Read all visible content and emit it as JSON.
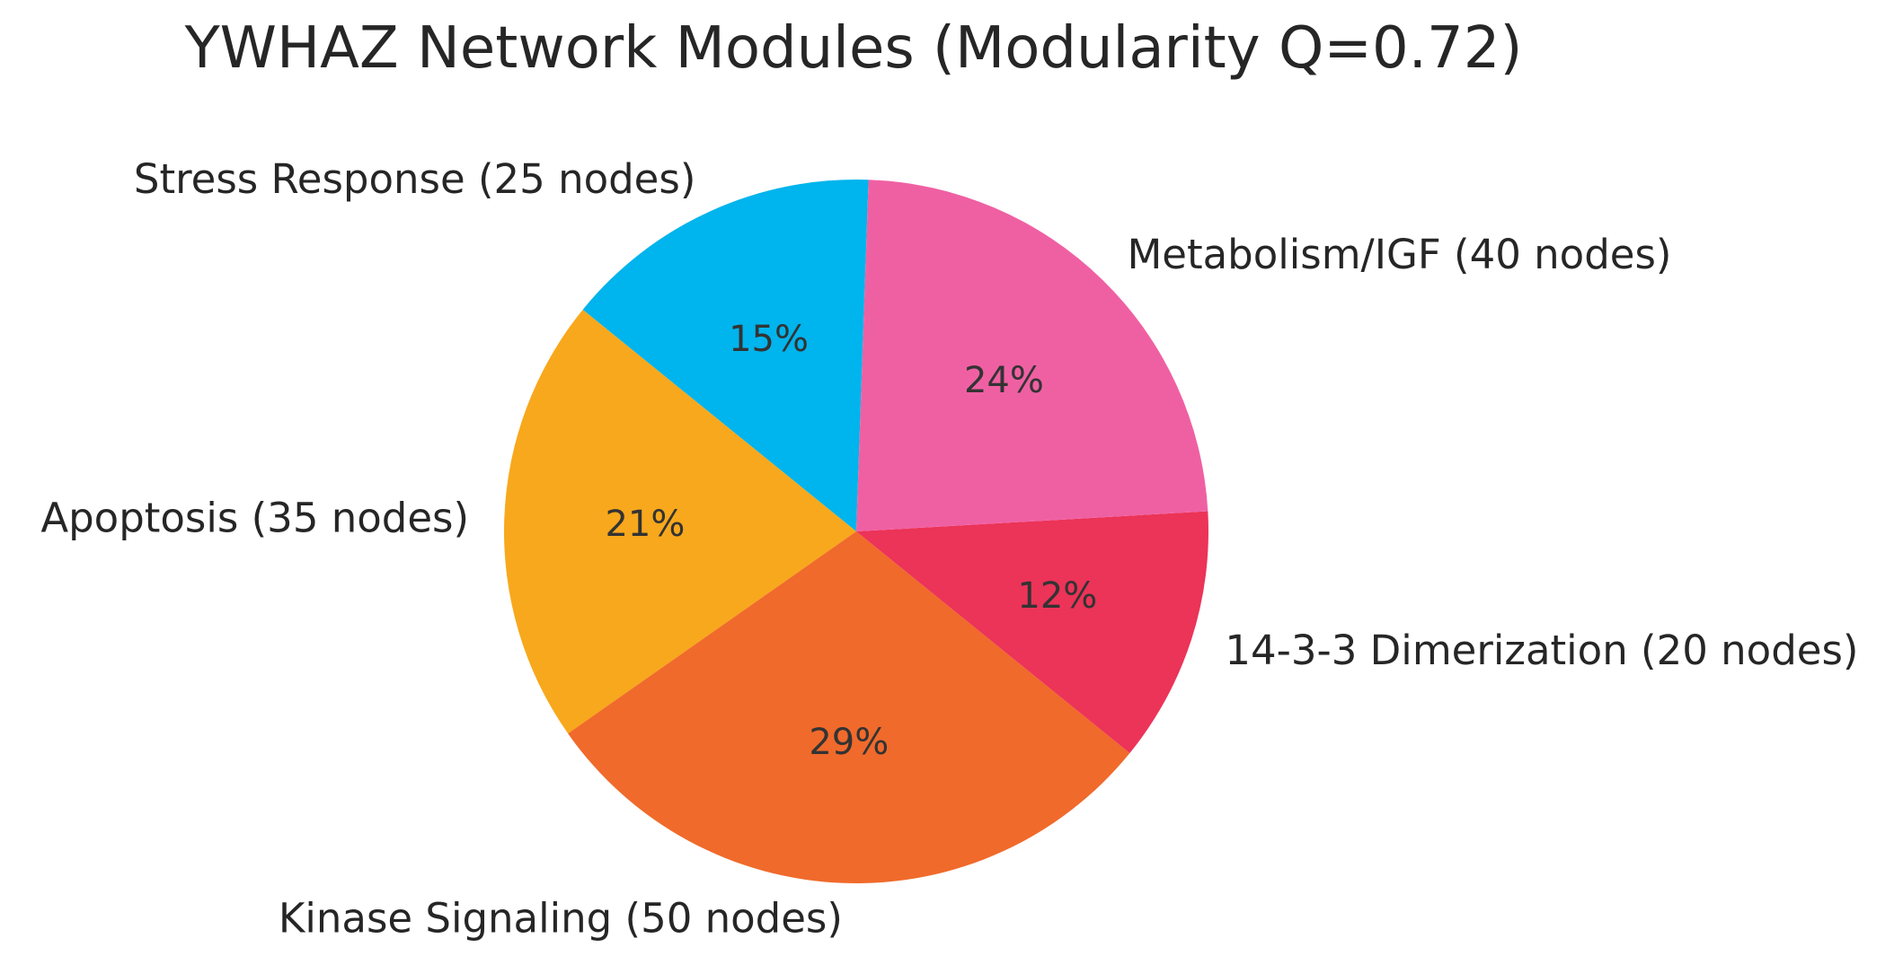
{
  "chart_data": {
    "type": "pie",
    "title": "YWHAZ Network Modules (Modularity Q=0.72)",
    "start_angle_deg": 88,
    "direction": "counterclockwise",
    "slices": [
      {
        "label": "Stress Response (25 nodes)",
        "value": 25,
        "pct_label": "15%",
        "color": "#00b4ed"
      },
      {
        "label": "Apoptosis (35 nodes)",
        "value": 35,
        "pct_label": "21%",
        "color": "#f8a81c"
      },
      {
        "label": "Kinase Signaling (50 nodes)",
        "value": 50,
        "pct_label": "29%",
        "color": "#f06a2b"
      },
      {
        "label": "14-3-3 Dimerization (20 nodes)",
        "value": 20,
        "pct_label": "12%",
        "color": "#ec3358"
      },
      {
        "label": "Metabolism/IGF (40 nodes)",
        "value": 40,
        "pct_label": "24%",
        "color": "#ef60a3"
      }
    ]
  }
}
